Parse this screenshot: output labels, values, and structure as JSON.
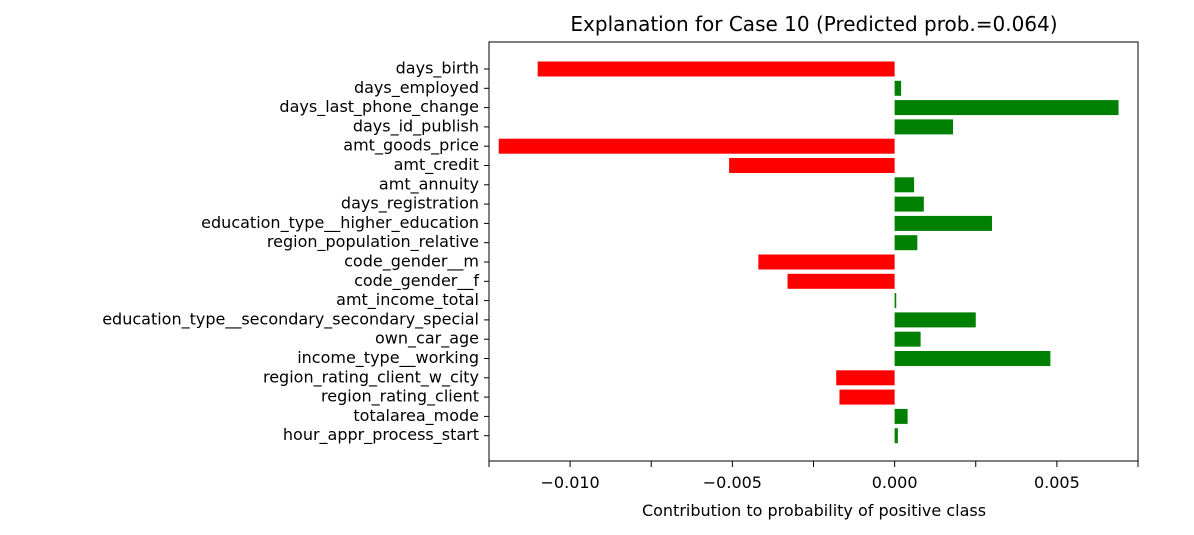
{
  "chart_data": {
    "type": "bar",
    "orientation": "horizontal",
    "title": "Explanation for Case 10 (Predicted prob.=0.064)",
    "xlabel": "Contribution to probability of positive class",
    "ylabel": "",
    "xlim": [
      -0.0125,
      0.0075
    ],
    "xticks": [
      -0.01,
      -0.005,
      0.0,
      0.005
    ],
    "xtick_labels": [
      "−0.010",
      "−0.005",
      "0.000",
      "0.005"
    ],
    "categories": [
      "days_birth",
      "days_employed",
      "days_last_phone_change",
      "days_id_publish",
      "amt_goods_price",
      "amt_credit",
      "amt_annuity",
      "days_registration",
      "education_type__higher_education",
      "region_population_relative",
      "code_gender__m",
      "code_gender__f",
      "amt_income_total",
      "education_type__secondary_secondary_special",
      "own_car_age",
      "income_type__working",
      "region_rating_client_w_city",
      "region_rating_client",
      "totalarea_mode",
      "hour_appr_process_start"
    ],
    "values": [
      -0.011,
      0.0002,
      0.0069,
      0.0018,
      -0.0122,
      -0.0051,
      0.0006,
      0.0009,
      0.003,
      0.0007,
      -0.0042,
      -0.0033,
      5e-05,
      0.0025,
      0.0008,
      0.0048,
      -0.0018,
      -0.0017,
      0.0004,
      0.0001
    ],
    "colors": {
      "positive": "#008000",
      "negative": "#ff0000"
    },
    "grid": false,
    "legend": "none"
  }
}
